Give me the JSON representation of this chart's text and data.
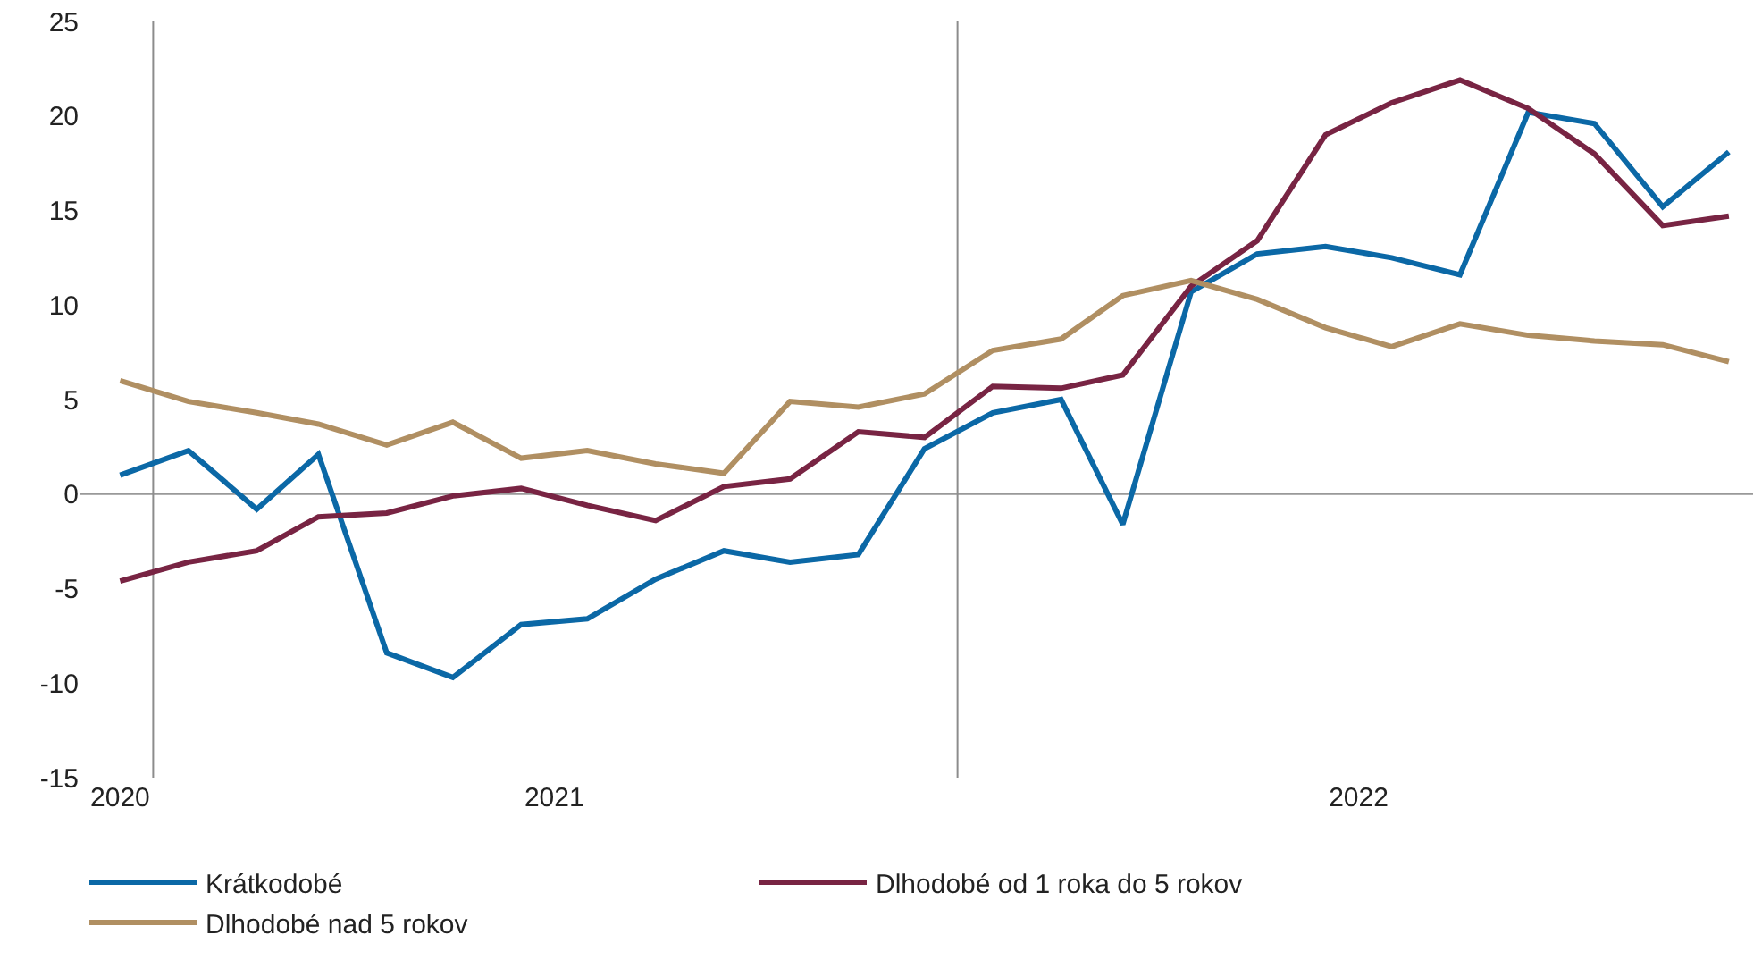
{
  "chart_data": {
    "type": "line",
    "x": [
      "2020-12",
      "2021-01",
      "2021-02",
      "2021-03",
      "2021-04",
      "2021-05",
      "2021-06",
      "2021-07",
      "2021-08",
      "2021-09",
      "2021-10",
      "2021-11",
      "2021-12",
      "2022-01",
      "2022-02",
      "2022-03",
      "2022-04",
      "2022-05",
      "2022-06",
      "2022-07",
      "2022-08",
      "2022-09",
      "2022-10",
      "2022-11",
      "2022-12"
    ],
    "series": [
      {
        "name": "Krátkodobé",
        "color": "#0b68a6",
        "values": [
          1.0,
          2.3,
          -0.8,
          2.1,
          -8.4,
          -9.7,
          -6.9,
          -6.6,
          -4.5,
          -3.0,
          -3.6,
          -3.2,
          2.4,
          4.3,
          5.0,
          -1.6,
          10.7,
          12.7,
          13.1,
          12.5,
          11.6,
          20.2,
          19.6,
          15.2,
          18.1
        ]
      },
      {
        "name": "Dlhodobé od 1 roka do 5 rokov",
        "color": "#782443",
        "values": [
          -4.6,
          -3.6,
          -3.0,
          -1.2,
          -1.0,
          -0.1,
          0.3,
          -0.6,
          -1.4,
          0.4,
          0.8,
          3.3,
          3.0,
          5.7,
          5.6,
          6.3,
          11.0,
          13.4,
          19.0,
          20.7,
          21.9,
          20.4,
          18.0,
          14.2,
          14.7
        ]
      },
      {
        "name": "Dlhodobé nad 5 rokov",
        "color": "#b08f62",
        "values": [
          6.0,
          4.9,
          4.3,
          3.7,
          2.6,
          3.8,
          1.9,
          2.3,
          1.6,
          1.1,
          4.9,
          4.6,
          5.3,
          7.6,
          8.2,
          10.5,
          11.3,
          10.3,
          8.8,
          7.8,
          9.0,
          8.4,
          8.1,
          7.9,
          7.0
        ]
      }
    ],
    "xlim": [
      "2020-11-13",
      "2022-12-12"
    ],
    "xticks": [
      {
        "value": "2020-12-01",
        "label": "2020"
      },
      {
        "value": "2021-06-16",
        "label": "2021"
      },
      {
        "value": "2022-06-16",
        "label": "2022"
      }
    ],
    "ylim": [
      -15,
      25
    ],
    "yticks": [
      -15,
      -10,
      -5,
      0,
      5,
      10,
      15,
      20,
      25
    ],
    "ref_lines": [
      {
        "axis": "x",
        "value": "2020-12-16",
        "color": "#8c8c8c"
      },
      {
        "axis": "x",
        "value": "2021-12-16",
        "color": "#8c8c8c"
      },
      {
        "axis": "y",
        "value": 0,
        "color": "#999999"
      }
    ],
    "grid": false,
    "legend": "bottom",
    "marker": "none",
    "line_style": "solid"
  }
}
